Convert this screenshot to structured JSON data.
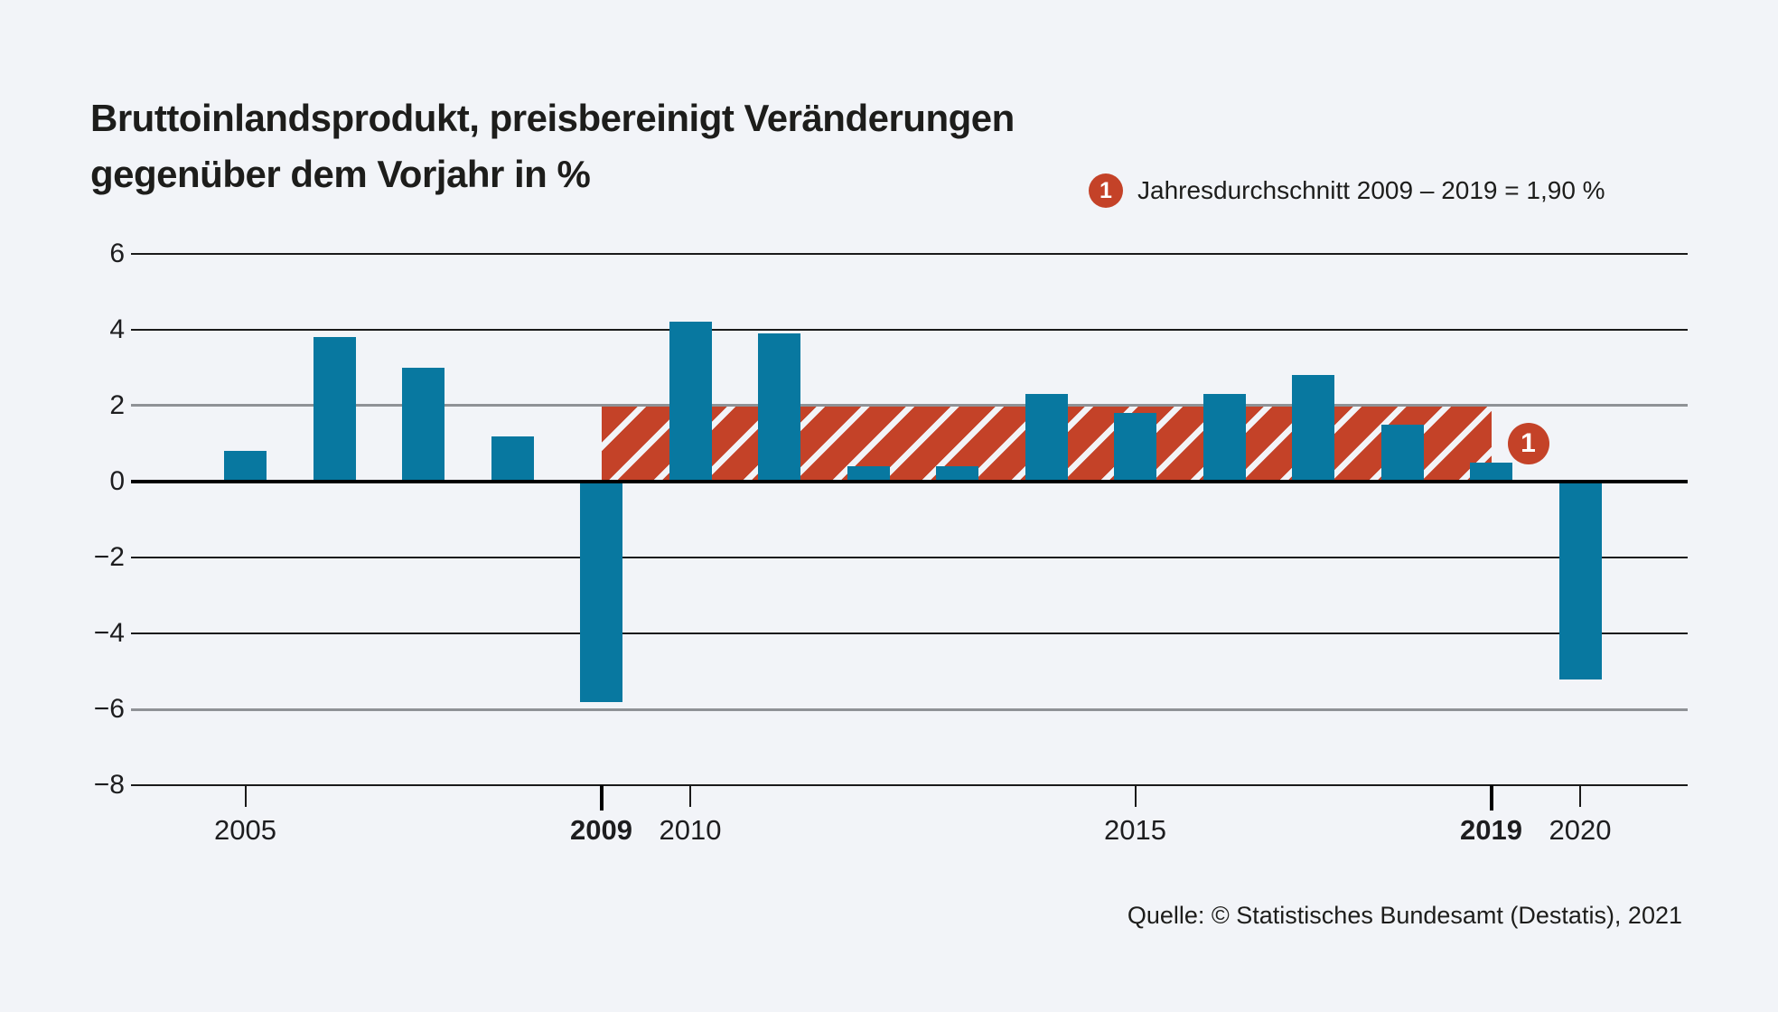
{
  "page": {
    "background": "#f2f4f8"
  },
  "header": {
    "title_line1": "Bruttoinlandsprodukt, preisbereinigt Veränderungen",
    "title_line2": "gegenüber dem Vorjahr in %"
  },
  "legend": {
    "marker": "1",
    "label": "Jahresdurchschnitt 2009 – 2019 = 1,90 %"
  },
  "source": {
    "label": "Quelle: © Statistisches Bundesamt (Destatis), 2021"
  },
  "colors": {
    "bar": "#0878a0",
    "band_red": "#c44228",
    "background": "#f2f4f8",
    "grid_dark": "#1a1a1a",
    "grid_gray": "#8f9296",
    "zero_line": "#000000",
    "text": "#1d1d1b"
  },
  "chart_data": {
    "type": "bar",
    "title": "Bruttoinlandsprodukt, preisbereinigt Veränderungen gegenüber dem Vorjahr in %",
    "categories": [
      "2005",
      "2006",
      "2007",
      "2008",
      "2009",
      "2010",
      "2011",
      "2012",
      "2013",
      "2014",
      "2015",
      "2016",
      "2017",
      "2018",
      "2019",
      "2020"
    ],
    "values": [
      0.8,
      3.8,
      3.0,
      1.2,
      -5.8,
      4.2,
      3.9,
      0.4,
      0.4,
      2.3,
      1.8,
      2.3,
      2.8,
      1.5,
      0.5,
      -5.2
    ],
    "unit": "%",
    "xlabel": "",
    "ylabel": "Veränderung gegenüber dem Vorjahr in %",
    "ylim": [
      -8,
      6
    ],
    "yticks": [
      {
        "value": 6,
        "label": "6",
        "style": "dark"
      },
      {
        "value": 4,
        "label": "4",
        "style": "dark"
      },
      {
        "value": 2,
        "label": "2",
        "style": "gray"
      },
      {
        "value": 0,
        "label": "0",
        "style": "zero"
      },
      {
        "value": -2,
        "label": "−2",
        "style": "dark"
      },
      {
        "value": -4,
        "label": "−4",
        "style": "dark"
      },
      {
        "value": -6,
        "label": "−6",
        "style": "gray"
      },
      {
        "value": -8,
        "label": "−8",
        "style": "dark"
      }
    ],
    "xticks": [
      {
        "label": "2005",
        "index": 0,
        "bold": false
      },
      {
        "label": "2009",
        "index": 4,
        "bold": true
      },
      {
        "label": "2010",
        "index": 5,
        "bold": false
      },
      {
        "label": "2015",
        "index": 10,
        "bold": false
      },
      {
        "label": "2019",
        "index": 14,
        "bold": true
      },
      {
        "label": "2020",
        "index": 15,
        "bold": false
      }
    ],
    "average_band": {
      "marker": "1",
      "from_year": "2009",
      "to_year": "2019",
      "value": 1.9,
      "label": "Jahresdurchschnitt 2009 – 2019 = 1,90 %"
    },
    "grid": "horizontal",
    "legend_position": "top-right"
  }
}
